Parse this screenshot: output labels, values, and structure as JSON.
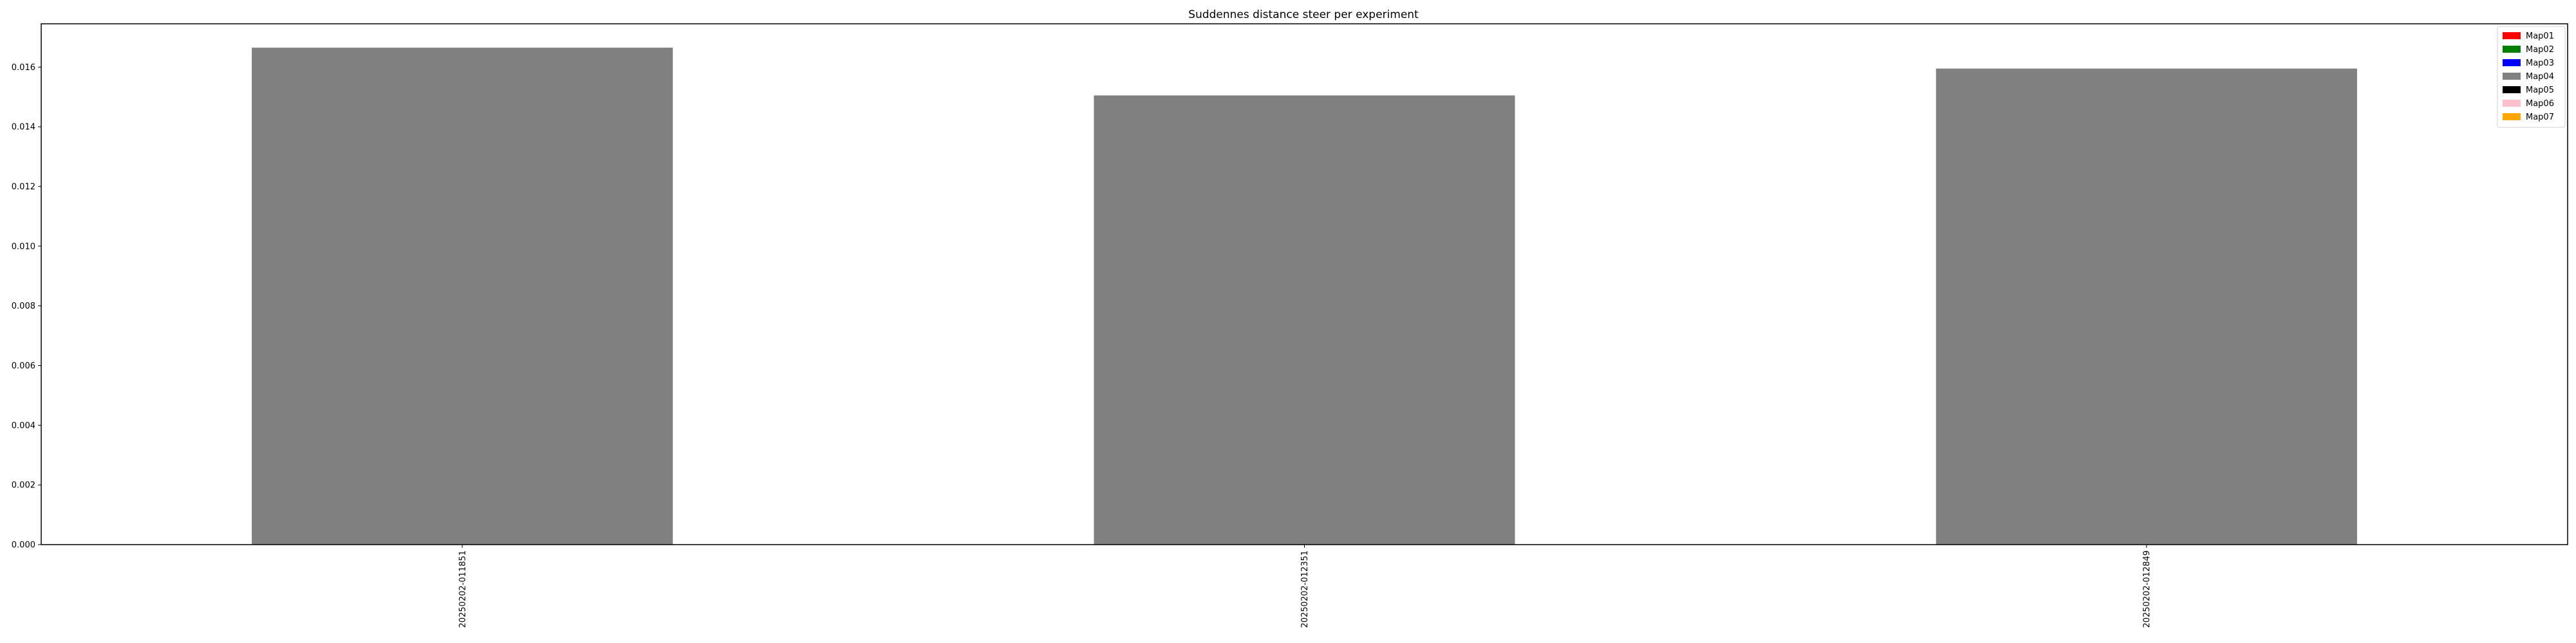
{
  "chart_data": {
    "type": "bar",
    "title": "Suddennes distance steer per experiment",
    "xlabel": "",
    "ylabel": "",
    "categories": [
      "20250202-011851",
      "20250202-012351",
      "20250202-012849"
    ],
    "series": [
      {
        "name": "Map04",
        "color": "#808080",
        "values": [
          0.01665,
          0.01505,
          0.01595
        ]
      }
    ],
    "ylim": [
      0,
      0.01745
    ],
    "yticks": [
      0.0,
      0.002,
      0.004,
      0.006,
      0.008,
      0.01,
      0.012,
      0.014,
      0.016
    ],
    "ytick_labels": [
      "0.000",
      "0.002",
      "0.004",
      "0.006",
      "0.008",
      "0.010",
      "0.012",
      "0.014",
      "0.016"
    ],
    "grid": false,
    "legend": {
      "placement": "top-right",
      "entries": [
        {
          "label": "Map01",
          "color": "#ff0000"
        },
        {
          "label": "Map02",
          "color": "#008000"
        },
        {
          "label": "Map03",
          "color": "#0000ff"
        },
        {
          "label": "Map04",
          "color": "#808080"
        },
        {
          "label": "Map05",
          "color": "#000000"
        },
        {
          "label": "Map06",
          "color": "#ffc0cb"
        },
        {
          "label": "Map07",
          "color": "#ffa500"
        }
      ]
    }
  }
}
